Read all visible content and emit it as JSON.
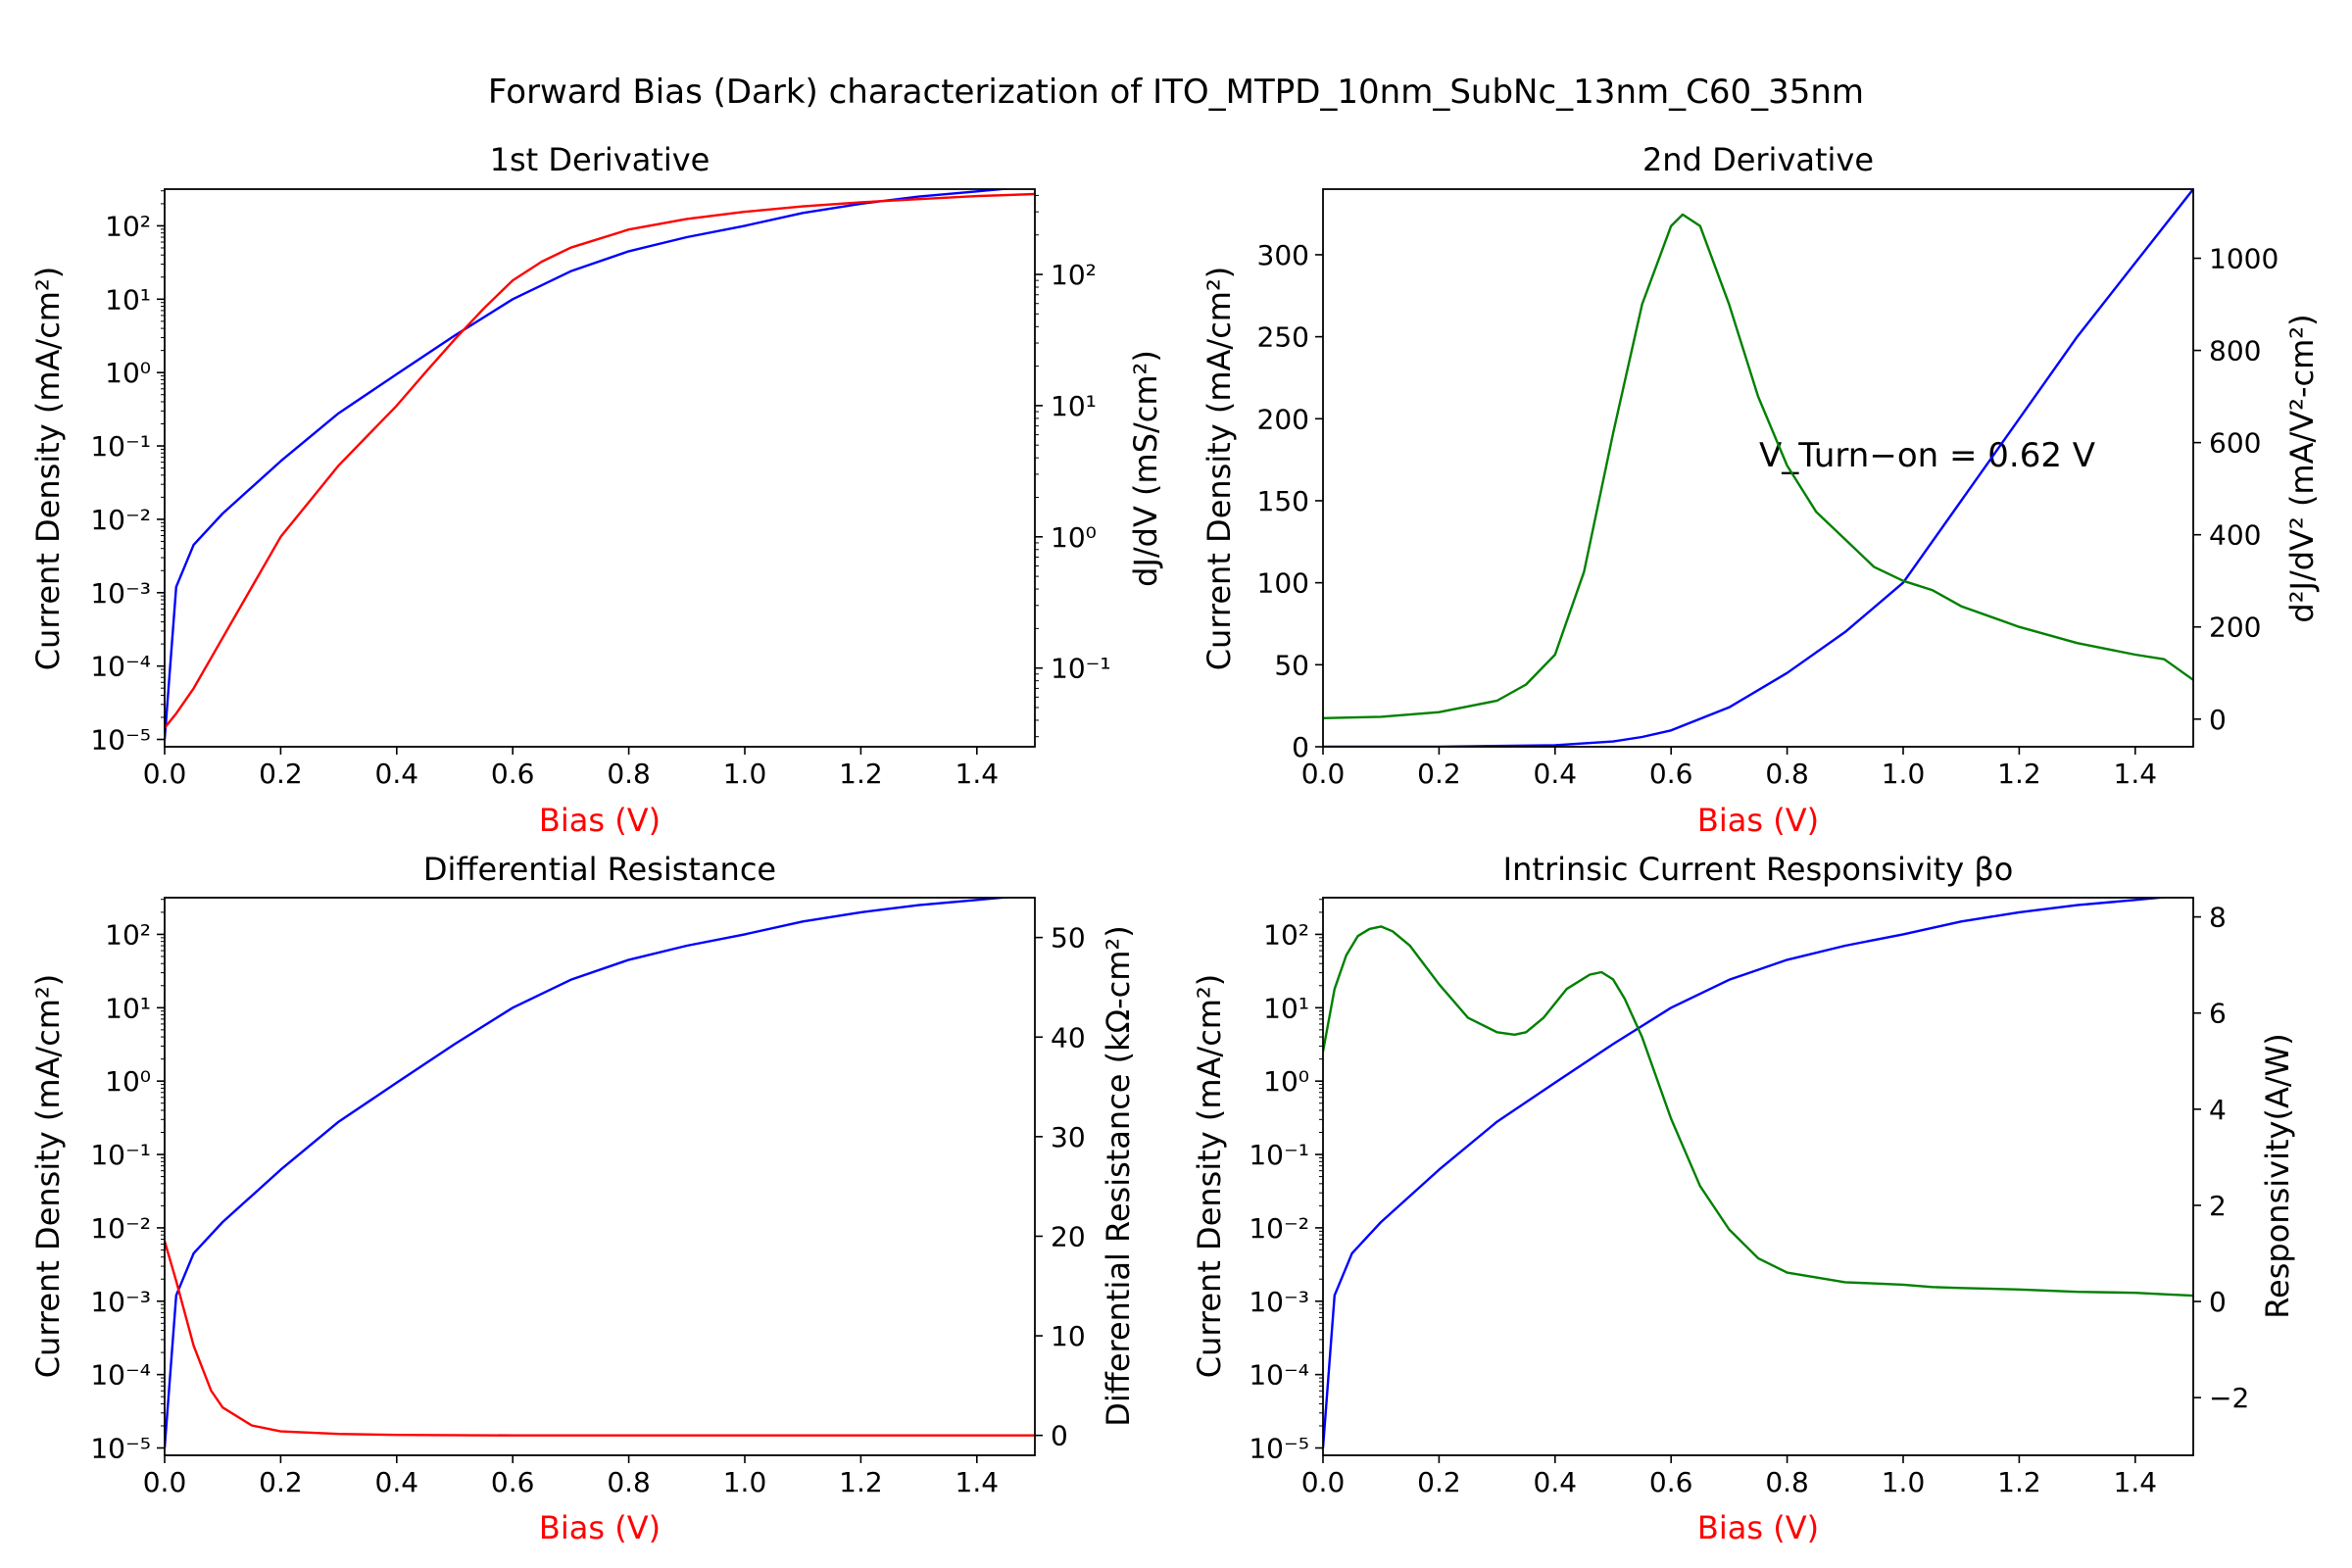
{
  "figure": {
    "suptitle": "Forward Bias (Dark) characterization of ITO_MTPD_10nm_SubNc_13nm_C60_35nm",
    "colors": {
      "current": "#0000ff",
      "derived_red": "#ff0000",
      "derived_green": "#008000",
      "xlabel": "#ff0000"
    }
  },
  "chart_data": [
    {
      "type": "line",
      "title": "1st Derivative",
      "xlabel": "Bias (V)",
      "ylabel": "Current Density (mA/cm²)",
      "y2label": "dJ/dV (mS/cm²)",
      "xlim": [
        0,
        1.5
      ],
      "xticks": [
        "0.0",
        "0.2",
        "0.4",
        "0.6",
        "0.8",
        "1.0",
        "1.2",
        "1.4"
      ],
      "ylim_log": [
        -5.1,
        2.5
      ],
      "y2lim_log": [
        -1.6,
        2.65
      ],
      "y2_scale": "log",
      "series": [
        {
          "axis": "y",
          "scale": "log",
          "color": "#0000ff",
          "x": [
            0.0,
            0.02,
            0.05,
            0.1,
            0.2,
            0.3,
            0.4,
            0.5,
            0.6,
            0.7,
            0.8,
            0.9,
            1.0,
            1.1,
            1.2,
            1.3,
            1.4,
            1.5
          ],
          "y": [
            1e-05,
            0.0012,
            0.0045,
            0.012,
            0.062,
            0.28,
            0.95,
            3.2,
            10,
            24,
            45,
            70,
            100,
            150,
            200,
            250,
            295,
            350
          ]
        },
        {
          "axis": "y2",
          "scale": "log",
          "color": "#ff0000",
          "x": [
            0.0,
            0.02,
            0.05,
            0.1,
            0.2,
            0.3,
            0.4,
            0.45,
            0.5,
            0.55,
            0.6,
            0.65,
            0.7,
            0.8,
            0.9,
            1.0,
            1.1,
            1.2,
            1.3,
            1.4,
            1.5
          ],
          "y": [
            0.035,
            0.045,
            0.07,
            0.17,
            1.0,
            3.5,
            10,
            18,
            32,
            55,
            90,
            125,
            160,
            220,
            265,
            300,
            330,
            355,
            375,
            395,
            410
          ]
        }
      ]
    },
    {
      "type": "line",
      "title": "2nd Derivative",
      "xlabel": "Bias (V)",
      "ylabel": "Current Density (mA/cm²)",
      "y2label": "d²J/dV² (mA/V²-cm²)",
      "xlim": [
        0,
        1.5
      ],
      "xticks": [
        "0.0",
        "0.2",
        "0.4",
        "0.6",
        "0.8",
        "1.0",
        "1.2",
        "1.4"
      ],
      "ylim": [
        0,
        340
      ],
      "yticks": [
        0,
        50,
        100,
        150,
        200,
        250,
        300
      ],
      "y2lim": [
        -60,
        1150
      ],
      "y2ticks": [
        0,
        200,
        400,
        600,
        800,
        1000
      ],
      "annotation": "V_Turn−on = 0.62 V",
      "series": [
        {
          "axis": "y",
          "color": "#0000ff",
          "x": [
            0.0,
            0.2,
            0.4,
            0.5,
            0.55,
            0.6,
            0.7,
            0.8,
            0.9,
            1.0,
            1.1,
            1.2,
            1.3,
            1.4,
            1.5
          ],
          "y": [
            0,
            0,
            0.95,
            3.2,
            6,
            10,
            24,
            45,
            70,
            100,
            150,
            200,
            250,
            295,
            340
          ]
        },
        {
          "axis": "y2",
          "color": "#008000",
          "x": [
            0.0,
            0.1,
            0.2,
            0.3,
            0.35,
            0.4,
            0.45,
            0.5,
            0.55,
            0.6,
            0.62,
            0.65,
            0.7,
            0.75,
            0.8,
            0.85,
            0.9,
            0.95,
            1.0,
            1.05,
            1.1,
            1.2,
            1.3,
            1.4,
            1.45,
            1.5
          ],
          "y": [
            2,
            5,
            15,
            40,
            75,
            140,
            320,
            620,
            900,
            1070,
            1095,
            1070,
            900,
            700,
            550,
            450,
            390,
            330,
            300,
            280,
            245,
            200,
            165,
            140,
            130,
            85
          ]
        }
      ]
    },
    {
      "type": "line",
      "title": "Differential Resistance",
      "xlabel": "Bias (V)",
      "ylabel": "Current Density (mA/cm²)",
      "y2label": "Differential Resistance (kΩ-cm²)",
      "xlim": [
        0,
        1.5
      ],
      "xticks": [
        "0.0",
        "0.2",
        "0.4",
        "0.6",
        "0.8",
        "1.0",
        "1.2",
        "1.4"
      ],
      "ylim_log": [
        -5.1,
        2.5
      ],
      "y2lim": [
        -2,
        54
      ],
      "y2ticks": [
        0,
        10,
        20,
        30,
        40,
        50
      ],
      "series": [
        {
          "axis": "y",
          "scale": "log",
          "color": "#0000ff",
          "x": [
            0.0,
            0.02,
            0.05,
            0.1,
            0.2,
            0.3,
            0.4,
            0.5,
            0.6,
            0.7,
            0.8,
            0.9,
            1.0,
            1.1,
            1.2,
            1.3,
            1.4,
            1.5
          ],
          "y": [
            1e-05,
            0.0012,
            0.0045,
            0.012,
            0.062,
            0.28,
            0.95,
            3.2,
            10,
            24,
            45,
            70,
            100,
            150,
            200,
            250,
            295,
            350
          ]
        },
        {
          "axis": "y2",
          "color": "#ff0000",
          "x": [
            0.0,
            0.02,
            0.05,
            0.08,
            0.1,
            0.15,
            0.2,
            0.3,
            0.4,
            0.6,
            1.0,
            1.5
          ],
          "y": [
            19.5,
            15.5,
            9,
            4.5,
            2.8,
            1.0,
            0.4,
            0.15,
            0.05,
            0.0,
            0.0,
            0.0
          ]
        }
      ]
    },
    {
      "type": "line",
      "title": "Intrinsic Current Responsivity βo",
      "xlabel": "Bias (V)",
      "ylabel": "Current Density (mA/cm²)",
      "y2label": "Responsivity(A/W)",
      "xlim": [
        0,
        1.5
      ],
      "xticks": [
        "0.0",
        "0.2",
        "0.4",
        "0.6",
        "0.8",
        "1.0",
        "1.2",
        "1.4"
      ],
      "ylim_log": [
        -5.1,
        2.5
      ],
      "y2lim": [
        -3.2,
        8.4
      ],
      "y2ticks": [
        -2,
        0,
        2,
        4,
        6,
        8
      ],
      "series": [
        {
          "axis": "y",
          "scale": "log",
          "color": "#0000ff",
          "x": [
            0.0,
            0.02,
            0.05,
            0.1,
            0.2,
            0.3,
            0.4,
            0.5,
            0.6,
            0.7,
            0.8,
            0.9,
            1.0,
            1.1,
            1.2,
            1.3,
            1.4,
            1.5
          ],
          "y": [
            1e-05,
            0.0012,
            0.0045,
            0.012,
            0.062,
            0.28,
            0.95,
            3.2,
            10,
            24,
            45,
            70,
            100,
            150,
            200,
            250,
            295,
            350
          ]
        },
        {
          "axis": "y2",
          "color": "#008000",
          "x": [
            0.0,
            0.02,
            0.04,
            0.06,
            0.08,
            0.1,
            0.12,
            0.15,
            0.2,
            0.25,
            0.3,
            0.33,
            0.35,
            0.38,
            0.42,
            0.46,
            0.48,
            0.5,
            0.52,
            0.55,
            0.6,
            0.65,
            0.7,
            0.75,
            0.8,
            0.9,
            1.0,
            1.05,
            1.1,
            1.2,
            1.3,
            1.4,
            1.45,
            1.5
          ],
          "y": [
            5.2,
            6.5,
            7.2,
            7.6,
            7.75,
            7.8,
            7.7,
            7.4,
            6.6,
            5.9,
            5.6,
            5.55,
            5.6,
            5.9,
            6.5,
            6.8,
            6.85,
            6.7,
            6.3,
            5.5,
            3.8,
            2.4,
            1.5,
            0.9,
            0.6,
            0.4,
            0.35,
            0.3,
            0.28,
            0.25,
            0.2,
            0.18,
            0.15,
            0.12
          ]
        }
      ]
    }
  ]
}
